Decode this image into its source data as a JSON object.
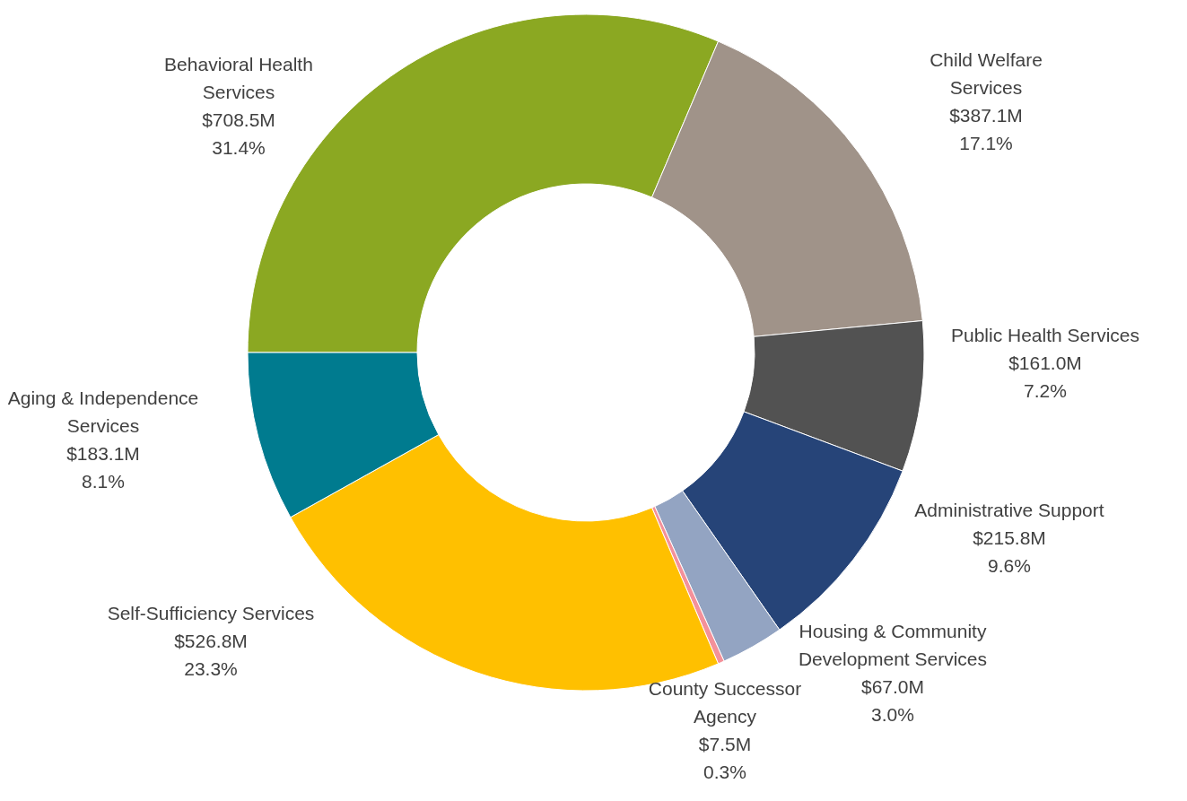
{
  "chart_data": {
    "type": "donut",
    "categories": [
      "Behavioral Health Services",
      "Child Welfare Services",
      "Public Health Services",
      "Administrative Support",
      "Housing & Community Development Services",
      "County Successor Agency",
      "Self-Sufficiency Services",
      "Aging & Independence Services"
    ],
    "values": [
      31.4,
      17.1,
      7.2,
      9.6,
      3.0,
      0.3,
      23.3,
      8.1
    ],
    "value_labels": [
      "$708.5M\n31.4%",
      "$387.1M\n17.1%",
      "$161.0M\n7.2%",
      "$215.8M\n9.6%",
      "$67.0M\n3.0%",
      "$7.5M\n0.3%",
      "$526.8M\n23.3%",
      "$183.1M\n8.1%"
    ],
    "colors": [
      "#8ba822",
      "#a09389",
      "#525252",
      "#264478",
      "#93a4c2",
      "#f4919a",
      "#ffc000",
      "#007b8f"
    ],
    "legend": false
  }
}
